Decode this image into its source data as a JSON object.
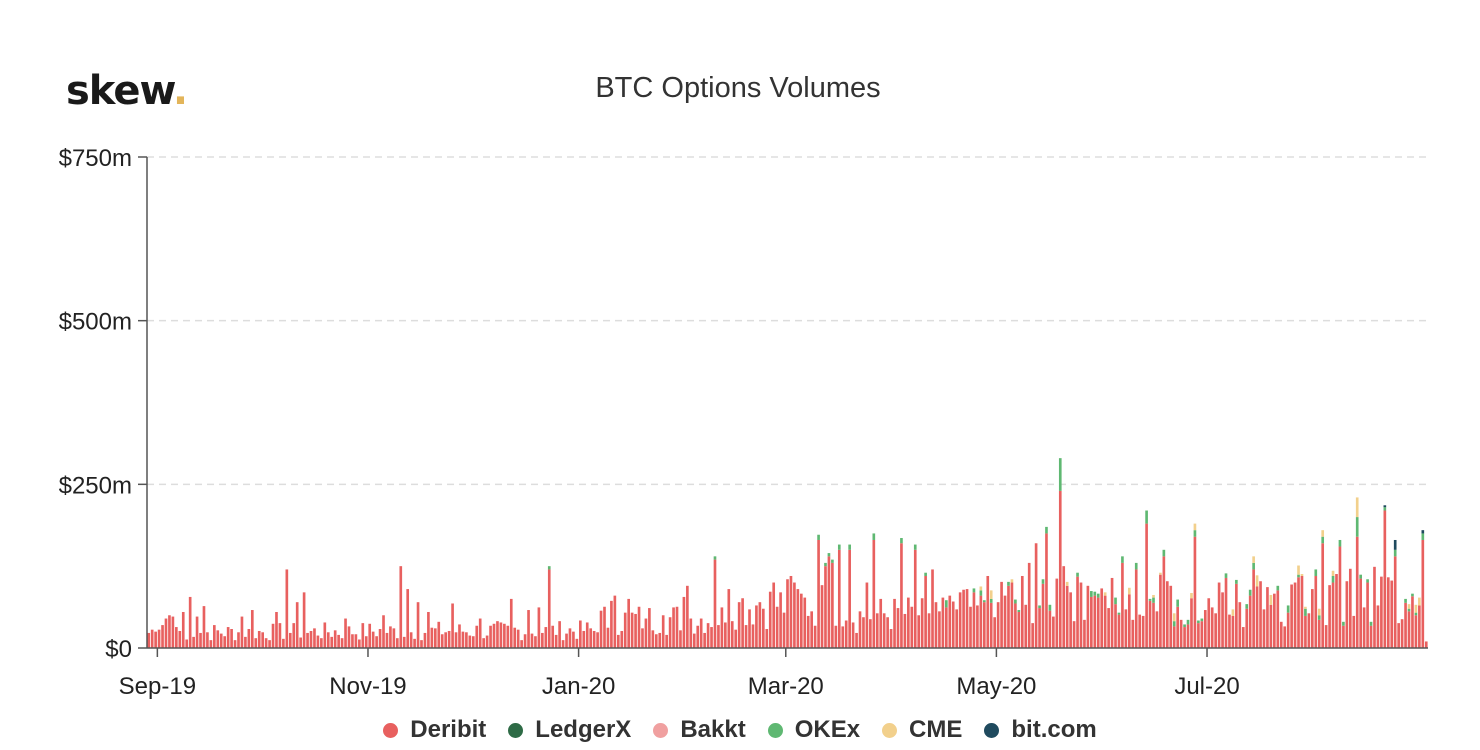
{
  "logo": {
    "text": "skew",
    "dot": "."
  },
  "chart_data": {
    "type": "bar",
    "stacked": true,
    "title": "BTC Options Volumes",
    "xlabel": "",
    "ylabel": "",
    "ylim": [
      0,
      750
    ],
    "y_unit": "$m",
    "y_ticks": [
      {
        "value": 0,
        "label": "$0"
      },
      {
        "value": 250,
        "label": "$250m"
      },
      {
        "value": 500,
        "label": "$500m"
      },
      {
        "value": 750,
        "label": "$750m"
      }
    ],
    "x_tick_labels": [
      "Sep-19",
      "Nov-19",
      "Jan-20",
      "Mar-20",
      "May-20",
      "Jul-20"
    ],
    "x_range": [
      "2019-08-29",
      "2020-09-02"
    ],
    "grid": true,
    "legend_position": "bottom-center",
    "series_colors": {
      "Deribit": "#e8605f",
      "LedgerX": "#2e6b46",
      "Bakkt": "#f0a0a0",
      "OKEx": "#5fb872",
      "CME": "#f2d08c",
      "bit.com": "#1f4a5e"
    },
    "series": [
      {
        "name": "Deribit",
        "color": "#e8605f"
      },
      {
        "name": "LedgerX",
        "color": "#2e6b46"
      },
      {
        "name": "Bakkt",
        "color": "#f0a0a0"
      },
      {
        "name": "OKEx",
        "color": "#5fb872"
      },
      {
        "name": "CME",
        "color": "#f2d08c"
      },
      {
        "name": "bit.com",
        "color": "#1f4a5e"
      }
    ],
    "days": [
      {
        "date": "2019-08-30",
        "Deribit": 28
      },
      {
        "date": "2019-09-05",
        "Deribit": 48
      },
      {
        "date": "2019-09-10",
        "Deribit": 78
      },
      {
        "date": "2019-09-14",
        "Deribit": 64
      },
      {
        "date": "2019-09-25",
        "Deribit": 48
      },
      {
        "date": "2019-10-08",
        "Deribit": 120
      },
      {
        "date": "2019-10-13",
        "Deribit": 85
      },
      {
        "date": "2019-11-10",
        "Deribit": 125
      },
      {
        "date": "2019-11-15",
        "Deribit": 70
      },
      {
        "date": "2019-11-25",
        "Deribit": 68
      },
      {
        "date": "2019-12-12",
        "Deribit": 75
      },
      {
        "date": "2019-12-20",
        "Deribit": 62
      },
      {
        "date": "2019-12-23",
        "Deribit": 120,
        "OKEx": 5
      },
      {
        "date": "2020-01-15",
        "Deribit": 75
      },
      {
        "date": "2020-01-25",
        "Deribit": 50
      },
      {
        "date": "2020-02-01",
        "Deribit": 95
      },
      {
        "date": "2020-02-09",
        "Deribit": 135,
        "OKEx": 5
      },
      {
        "date": "2020-02-22",
        "Deribit": 70
      },
      {
        "date": "2020-03-01",
        "Deribit": 105
      },
      {
        "date": "2020-03-10",
        "Deribit": 165,
        "OKEx": 8
      },
      {
        "date": "2020-03-16",
        "Deribit": 150,
        "OKEx": 8
      },
      {
        "date": "2020-04-03",
        "Deribit": 160,
        "OKEx": 8
      },
      {
        "date": "2020-04-07",
        "Deribit": 150,
        "OKEx": 8
      },
      {
        "date": "2020-04-20",
        "Deribit": 85
      },
      {
        "date": "2020-04-28",
        "Deribit": 110
      },
      {
        "date": "2020-05-01",
        "Deribit": 70
      },
      {
        "date": "2020-05-03",
        "Deribit": 80
      },
      {
        "date": "2020-05-12",
        "Deribit": 160
      },
      {
        "date": "2020-05-15",
        "Deribit": 175,
        "OKEx": 10
      },
      {
        "date": "2020-05-19",
        "Deribit": 240,
        "OKEx": 50
      },
      {
        "date": "2020-05-20",
        "Deribit": 125
      },
      {
        "date": "2020-06-13",
        "Deribit": 190,
        "OKEx": 20
      },
      {
        "date": "2020-06-27",
        "Deribit": 170,
        "OKEx": 10,
        "CME": 10
      },
      {
        "date": "2020-07-04",
        "Deribit": 100
      },
      {
        "date": "2020-07-10",
        "Deribit": 70
      },
      {
        "date": "2020-07-26",
        "Deribit": 100
      },
      {
        "date": "2020-08-01",
        "Deribit": 110,
        "OKEx": 10
      },
      {
        "date": "2020-08-03",
        "Deribit": 160,
        "OKEx": 10,
        "CME": 10
      },
      {
        "date": "2020-08-13",
        "Deribit": 170,
        "OKEx": 30,
        "CME": 30
      },
      {
        "date": "2020-08-21",
        "Deribit": 210,
        "OKEx": 5,
        "bit.com": 3
      },
      {
        "date": "2020-08-24",
        "Deribit": 140,
        "OKEx": 10,
        "bit.com": 15
      },
      {
        "date": "2020-09-01",
        "Deribit": 165,
        "OKEx": 10,
        "bit.com": 5
      },
      {
        "date": "2020-09-02",
        "Deribit": 10
      }
    ],
    "days_more": [
      {
        "date": "2019-08-31",
        "Deribit": 25
      },
      {
        "date": "2019-09-01",
        "Deribit": 28
      },
      {
        "date": "2019-09-02",
        "Deribit": 35
      },
      {
        "date": "2019-09-03",
        "Deribit": 45
      },
      {
        "date": "2019-09-04",
        "Deribit": 50
      },
      {
        "date": "2019-09-06",
        "Deribit": 32
      },
      {
        "date": "2019-09-08",
        "Deribit": 55
      },
      {
        "date": "2019-09-12",
        "Deribit": 48
      },
      {
        "date": "2019-09-28",
        "Deribit": 58
      },
      {
        "date": "2019-10-05",
        "Deribit": 55
      },
      {
        "date": "2019-10-11",
        "Deribit": 70
      },
      {
        "date": "2019-10-25",
        "Deribit": 45
      },
      {
        "date": "2019-11-05",
        "Deribit": 50
      },
      {
        "date": "2019-11-12",
        "Deribit": 90
      },
      {
        "date": "2019-11-18",
        "Deribit": 55
      },
      {
        "date": "2019-12-03",
        "Deribit": 45
      },
      {
        "date": "2019-12-17",
        "Deribit": 58
      },
      {
        "date": "2020-01-10",
        "Deribit": 72
      },
      {
        "date": "2020-01-11",
        "Deribit": 80
      },
      {
        "date": "2020-01-20",
        "Deribit": 45
      },
      {
        "date": "2020-01-31",
        "Deribit": 78
      },
      {
        "date": "2020-02-13",
        "Deribit": 90
      },
      {
        "date": "2020-02-16",
        "Deribit": 70
      },
      {
        "date": "2020-02-26",
        "Deribit": 100
      },
      {
        "date": "2020-03-02",
        "Deribit": 110
      },
      {
        "date": "2020-03-04",
        "Deribit": 90
      },
      {
        "date": "2020-03-12",
        "Deribit": 125,
        "OKEx": 5
      },
      {
        "date": "2020-03-13",
        "Deribit": 140,
        "OKEx": 5
      },
      {
        "date": "2020-03-14",
        "Deribit": 130,
        "OKEx": 5
      },
      {
        "date": "2020-03-19",
        "Deribit": 150,
        "OKEx": 8
      },
      {
        "date": "2020-03-24",
        "Deribit": 100
      },
      {
        "date": "2020-03-26",
        "Deribit": 165,
        "OKEx": 10
      },
      {
        "date": "2020-04-10",
        "Deribit": 110,
        "OKEx": 5
      },
      {
        "date": "2020-04-12",
        "Deribit": 120
      },
      {
        "date": "2020-04-17",
        "Deribit": 80
      },
      {
        "date": "2020-04-22",
        "Deribit": 90
      },
      {
        "date": "2020-05-08",
        "Deribit": 110
      },
      {
        "date": "2020-05-10",
        "Deribit": 130
      },
      {
        "date": "2020-05-22",
        "Deribit": 85
      },
      {
        "date": "2020-05-25",
        "Deribit": 100
      },
      {
        "date": "2020-06-06",
        "Deribit": 130,
        "OKEx": 10
      },
      {
        "date": "2020-06-10",
        "Deribit": 120,
        "OKEx": 10
      },
      {
        "date": "2020-06-18",
        "Deribit": 140,
        "OKEx": 10
      },
      {
        "date": "2020-07-14",
        "Deribit": 120,
        "OKEx": 10,
        "CME": 10
      },
      {
        "date": "2020-07-31",
        "Deribit": 90
      },
      {
        "date": "2020-08-06",
        "Deribit": 100,
        "OKEx": 10,
        "CME": 8
      },
      {
        "date": "2020-08-08",
        "Deribit": 155,
        "OKEx": 10
      },
      {
        "date": "2020-08-16",
        "Deribit": 100,
        "OKEx": 5
      }
    ]
  }
}
